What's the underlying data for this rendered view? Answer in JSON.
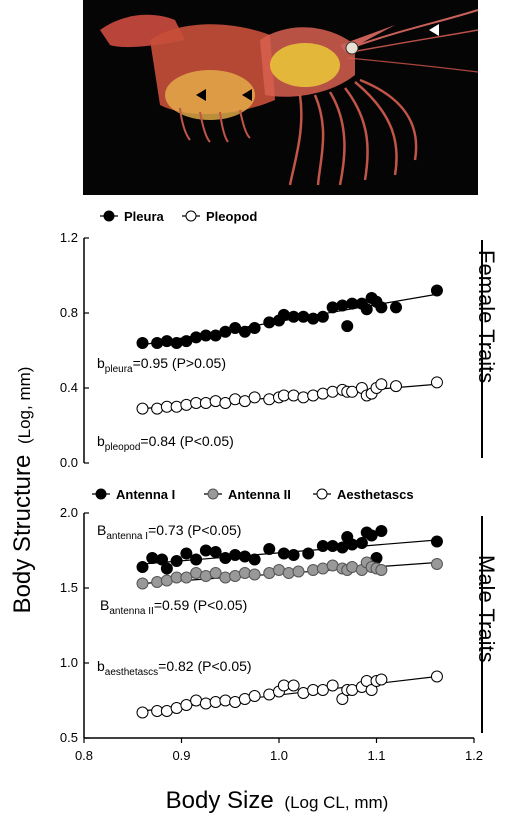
{
  "figure": {
    "ylabel_main": "Body Structure",
    "ylabel_unit": "(Log, mm)",
    "xlabel_main": "Body Size",
    "xlabel_unit": "(Log CL, mm)"
  },
  "chart_data": [
    {
      "type": "scatter",
      "panel": "Female Traits",
      "title": "",
      "xlim": [
        0.8,
        1.2
      ],
      "ylim": [
        0.0,
        1.2
      ],
      "yticks": [
        "0.0",
        "0.4",
        "0.8",
        "1.2"
      ],
      "legend": "top-left",
      "series": [
        {
          "name": "Pleura",
          "marker": "filled",
          "color": "#000000",
          "x": [
            0.86,
            0.875,
            0.885,
            0.895,
            0.905,
            0.915,
            0.925,
            0.935,
            0.945,
            0.955,
            0.965,
            0.975,
            0.99,
            1.0,
            1.005,
            1.015,
            1.025,
            1.035,
            1.045,
            1.055,
            1.065,
            1.07,
            1.075,
            1.085,
            1.09,
            1.095,
            1.1,
            1.105,
            1.12,
            1.162
          ],
          "y": [
            0.64,
            0.64,
            0.65,
            0.64,
            0.65,
            0.67,
            0.68,
            0.68,
            0.7,
            0.72,
            0.7,
            0.72,
            0.75,
            0.76,
            0.79,
            0.78,
            0.78,
            0.77,
            0.78,
            0.83,
            0.84,
            0.73,
            0.85,
            0.85,
            0.82,
            0.88,
            0.86,
            0.83,
            0.83,
            0.92
          ],
          "fit": {
            "x": [
              0.86,
              1.162
            ],
            "y": [
              0.63,
              0.9
            ]
          }
        },
        {
          "name": "Pleopod",
          "marker": "open",
          "color": "#000000",
          "x": [
            0.86,
            0.875,
            0.885,
            0.895,
            0.905,
            0.915,
            0.925,
            0.935,
            0.945,
            0.955,
            0.965,
            0.975,
            0.99,
            1.0,
            1.005,
            1.015,
            1.025,
            1.035,
            1.045,
            1.055,
            1.065,
            1.07,
            1.075,
            1.085,
            1.09,
            1.095,
            1.1,
            1.105,
            1.12,
            1.162
          ],
          "y": [
            0.29,
            0.29,
            0.3,
            0.3,
            0.31,
            0.32,
            0.32,
            0.33,
            0.32,
            0.34,
            0.33,
            0.35,
            0.34,
            0.35,
            0.36,
            0.36,
            0.35,
            0.36,
            0.37,
            0.38,
            0.39,
            0.38,
            0.38,
            0.4,
            0.36,
            0.37,
            0.4,
            0.42,
            0.41,
            0.43
          ],
          "fit": {
            "x": [
              0.86,
              1.162
            ],
            "y": [
              0.29,
              0.42
            ]
          }
        }
      ],
      "annotations": [
        {
          "base": "b",
          "sub": "pleura",
          "text": "=0.95 (P>0.05)"
        },
        {
          "base": "b",
          "sub": "pleopod",
          "text": "=0.84 (P<0.05)"
        }
      ]
    },
    {
      "type": "scatter",
      "panel": "Male Traits",
      "title": "",
      "xlabel": "Body Size (Log CL, mm)",
      "xlim": [
        0.8,
        1.2
      ],
      "ylim": [
        0.5,
        2.0
      ],
      "xticks": [
        "0.8",
        "0.9",
        "1.0",
        "1.1",
        "1.2"
      ],
      "yticks": [
        "0.5",
        "1.0",
        "1.5",
        "2.0"
      ],
      "legend": "top-left",
      "series": [
        {
          "name": "Antenna I",
          "marker": "filled",
          "color": "#000000",
          "x": [
            0.86,
            0.87,
            0.88,
            0.885,
            0.895,
            0.905,
            0.915,
            0.925,
            0.935,
            0.945,
            0.955,
            0.965,
            0.975,
            0.99,
            1.005,
            1.015,
            1.03,
            1.045,
            1.055,
            1.065,
            1.07,
            1.075,
            1.085,
            1.09,
            1.095,
            1.1,
            1.105,
            1.162
          ],
          "y": [
            1.64,
            1.7,
            1.69,
            1.63,
            1.68,
            1.73,
            1.69,
            1.75,
            1.74,
            1.7,
            1.72,
            1.71,
            1.69,
            1.76,
            1.73,
            1.72,
            1.73,
            1.78,
            1.78,
            1.77,
            1.84,
            1.79,
            1.8,
            1.87,
            1.85,
            1.7,
            1.88,
            1.81
          ],
          "fit": {
            "x": [
              0.86,
              1.162
            ],
            "y": [
              1.66,
              1.82
            ]
          }
        },
        {
          "name": "Antenna II",
          "marker": "gray",
          "color": "#999999",
          "x": [
            0.86,
            0.875,
            0.885,
            0.895,
            0.905,
            0.915,
            0.925,
            0.935,
            0.945,
            0.955,
            0.965,
            0.975,
            0.99,
            1.0,
            1.01,
            1.02,
            1.035,
            1.045,
            1.055,
            1.065,
            1.07,
            1.075,
            1.085,
            1.09,
            1.095,
            1.1,
            1.105,
            1.162
          ],
          "y": [
            1.53,
            1.54,
            1.55,
            1.57,
            1.57,
            1.6,
            1.58,
            1.6,
            1.57,
            1.58,
            1.6,
            1.59,
            1.6,
            1.62,
            1.6,
            1.61,
            1.62,
            1.63,
            1.65,
            1.63,
            1.62,
            1.64,
            1.62,
            1.67,
            1.64,
            1.63,
            1.62,
            1.66
          ],
          "fit": {
            "x": [
              0.86,
              1.162
            ],
            "y": [
              1.53,
              1.67
            ]
          }
        },
        {
          "name": "Aesthetascs",
          "marker": "open",
          "color": "#000000",
          "x": [
            0.86,
            0.875,
            0.885,
            0.895,
            0.905,
            0.915,
            0.925,
            0.935,
            0.945,
            0.955,
            0.965,
            0.975,
            0.99,
            1.0,
            1.005,
            1.015,
            1.025,
            1.035,
            1.045,
            1.055,
            1.065,
            1.07,
            1.075,
            1.085,
            1.09,
            1.095,
            1.1,
            1.105,
            1.162
          ],
          "y": [
            0.67,
            0.68,
            0.68,
            0.7,
            0.72,
            0.75,
            0.73,
            0.74,
            0.75,
            0.74,
            0.76,
            0.78,
            0.79,
            0.81,
            0.85,
            0.85,
            0.8,
            0.82,
            0.82,
            0.85,
            0.76,
            0.82,
            0.82,
            0.84,
            0.88,
            0.82,
            0.88,
            0.89,
            0.91
          ],
          "fit": {
            "x": [
              0.86,
              1.162
            ],
            "y": [
              0.68,
              0.91
            ]
          }
        }
      ],
      "annotations": [
        {
          "base": "B",
          "sub": "antenna I",
          "text": "=0.73 (P<0.05)"
        },
        {
          "base": "B",
          "sub": "antenna II",
          "text": "=0.59 (P<0.05)"
        },
        {
          "base": "b",
          "sub": "aesthetascs",
          "text": "=0.82 (P<0.05)"
        }
      ]
    }
  ],
  "colors": {
    "photo_bg": "#050505",
    "shrimp_body": "#c8503a",
    "shrimp_gut": "#e8c23a"
  },
  "icons": [
    "shrimp-photo",
    "arrow-icon"
  ]
}
